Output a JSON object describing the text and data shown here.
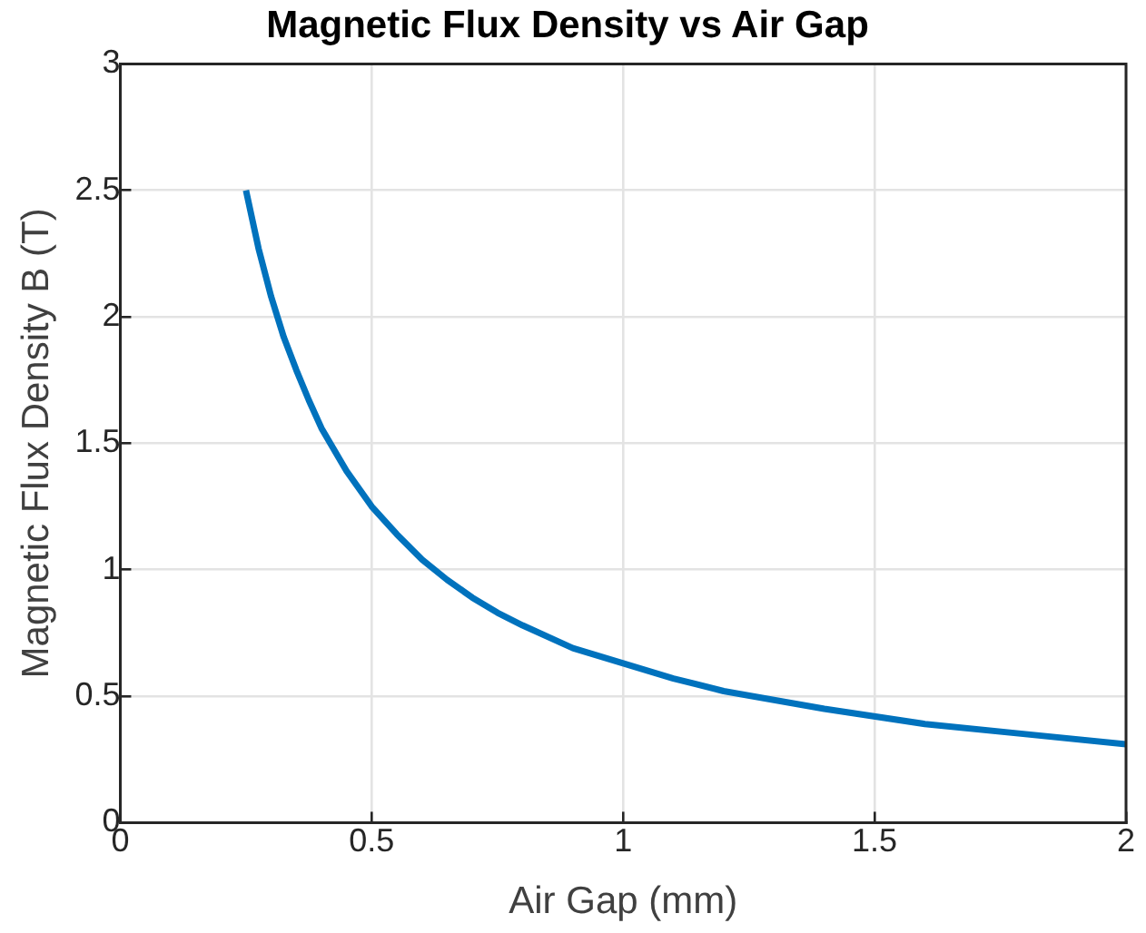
{
  "chart_data": {
    "type": "line",
    "title": "Magnetic Flux Density vs Air Gap",
    "xlabel": "Air Gap (mm)",
    "ylabel": "Magnetic Flux Density B (T)",
    "x": [
      0.25,
      0.275,
      0.3,
      0.325,
      0.35,
      0.375,
      0.4,
      0.45,
      0.5,
      0.55,
      0.6,
      0.65,
      0.7,
      0.75,
      0.8,
      0.9,
      1,
      1.1,
      1.2,
      1.4,
      1.6,
      1.8,
      2
    ],
    "series": [
      {
        "color": "#0072bd",
        "values": [
          2.5,
          2.27,
          2.08,
          1.92,
          1.79,
          1.67,
          1.56,
          1.39,
          1.25,
          1.14,
          1.04,
          0.96,
          0.89,
          0.83,
          0.78,
          0.69,
          0.63,
          0.57,
          0.52,
          0.45,
          0.39,
          0.35,
          0.31
        ]
      }
    ],
    "xlim": [
      0,
      2
    ],
    "xticks": [
      0,
      0.5,
      1,
      1.5,
      2
    ],
    "ylim": [
      0,
      3
    ],
    "yticks": [
      0,
      0.5,
      1,
      1.5,
      2,
      2.5,
      3
    ],
    "grid": true,
    "legend": false,
    "marker": "none",
    "line_style": "solid"
  }
}
